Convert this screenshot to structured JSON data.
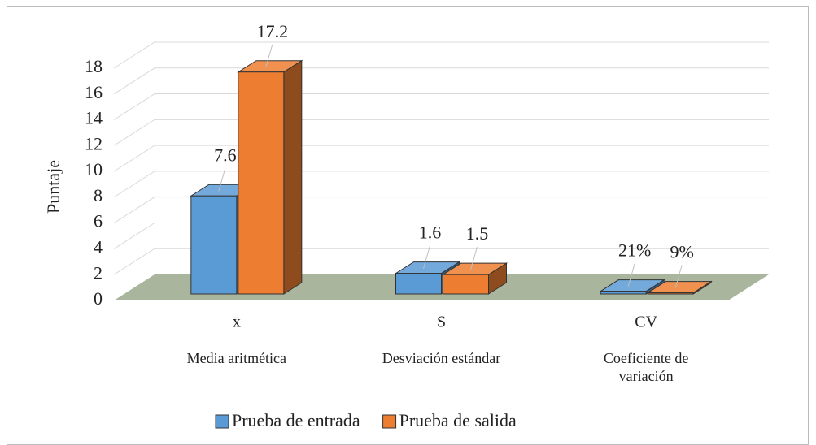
{
  "chart_data": {
    "type": "bar3d",
    "y_label": "Puntaje",
    "categories": [
      "x̄",
      "S",
      "CV"
    ],
    "category_descriptions": [
      "Media aritmética",
      "Desviación estándar",
      "Coeficiente de variación"
    ],
    "series": [
      {
        "name": "Prueba de entrada",
        "color": "#5b9bd5",
        "values": [
          7.6,
          1.6,
          0.21
        ],
        "value_labels": [
          "7.6",
          "1.6",
          "21%"
        ]
      },
      {
        "name": "Prueba de salida",
        "color": "#ed7d31",
        "values": [
          17.2,
          1.5,
          0.09
        ],
        "value_labels": [
          "17.2",
          "1.5",
          "9%"
        ]
      }
    ],
    "ylim": [
      0,
      18
    ],
    "yticks": [
      0,
      2,
      4,
      6,
      8,
      10,
      12,
      14,
      16,
      18
    ],
    "grid": true,
    "floor_color": "#a9b59c",
    "legend": "bottom"
  }
}
